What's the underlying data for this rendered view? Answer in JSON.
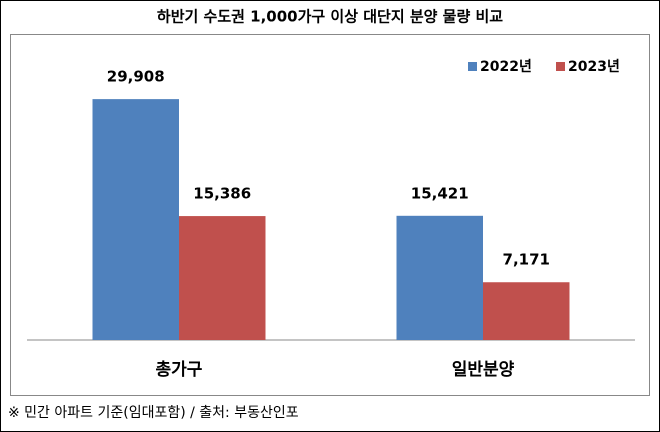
{
  "chart_data": {
    "type": "bar",
    "title": "하반기 수도권 1,000가구 이상 대단지 분양 물량 비교",
    "categories": [
      "총가구",
      "일반분양"
    ],
    "series": [
      {
        "name": "2022년",
        "color": "#4f81bd",
        "values": [
          29908,
          15421
        ],
        "value_labels": [
          "29,908",
          "15,421"
        ]
      },
      {
        "name": "2023년",
        "color": "#c0504d",
        "values": [
          15386,
          7171
        ],
        "value_labels": [
          "15,386",
          "7,171"
        ]
      }
    ],
    "ylim": [
      0,
      37000
    ],
    "legend": "top-right",
    "note": "※ 민간 아파트 기준(임대포함) / 출처: 부동산인포"
  }
}
